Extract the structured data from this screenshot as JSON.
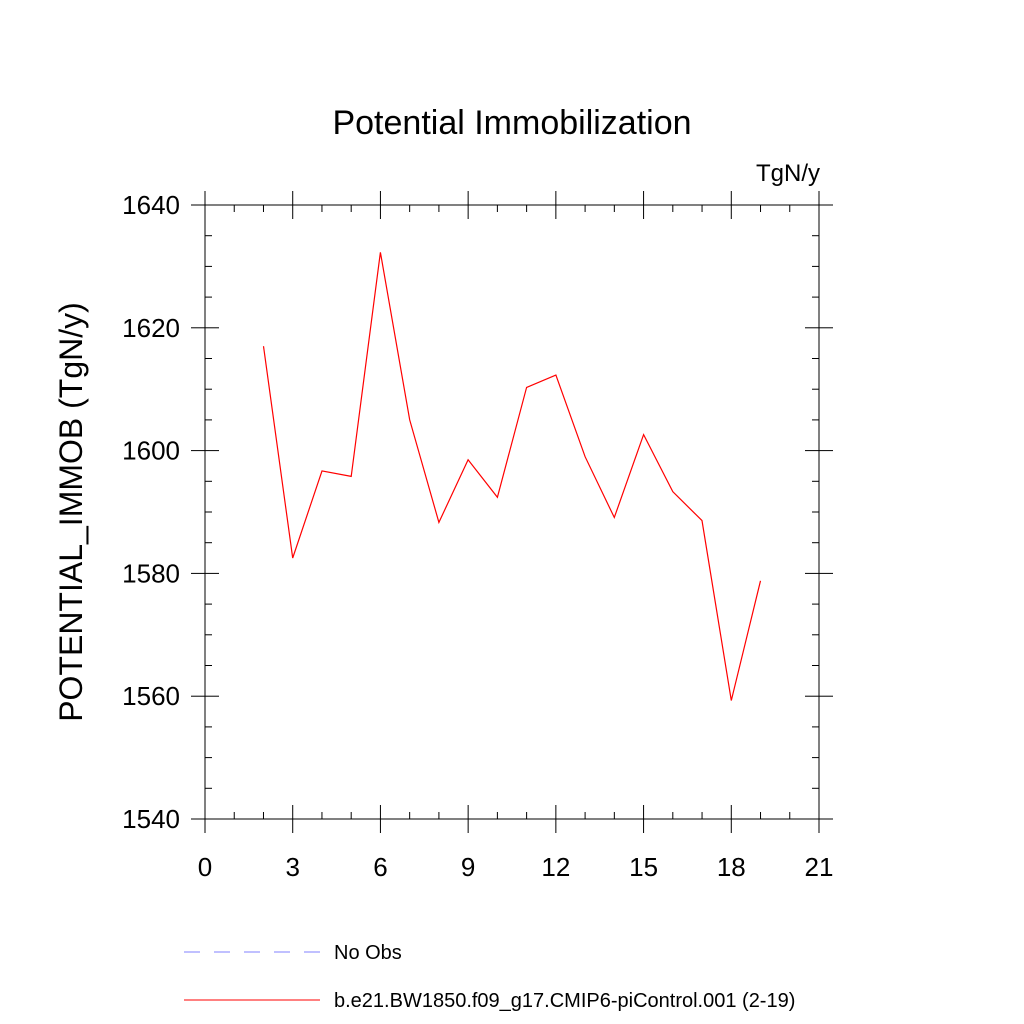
{
  "chart_data": {
    "type": "line",
    "title": "Potential Immobilization",
    "units_label": "TgN/y",
    "xlabel": "",
    "ylabel": "POTENTIAL_IMMOB  (TgN/y)",
    "xlim": [
      0,
      21
    ],
    "ylim": [
      1540,
      1640
    ],
    "xticks": [
      0,
      3,
      6,
      9,
      12,
      15,
      18,
      21
    ],
    "yticks": [
      1540,
      1560,
      1580,
      1600,
      1620,
      1640
    ],
    "grid": false,
    "series": [
      {
        "name": "b.e21.BW1850.f09_g17.CMIP6-piControl.001 (2-19)",
        "color": "#ff0000",
        "style": "solid",
        "x": [
          2,
          3,
          4,
          5,
          6,
          7,
          8,
          9,
          10,
          11,
          12,
          13,
          14,
          15,
          16,
          17,
          18,
          19
        ],
        "values": [
          1617,
          1582.5,
          1596.7,
          1595.8,
          1632.3,
          1605,
          1588.3,
          1598.5,
          1592.4,
          1610.3,
          1612.3,
          1599,
          1589.1,
          1602.6,
          1593.3,
          1588.6,
          1559.3,
          1578.8
        ]
      }
    ],
    "legend": {
      "placement": "bottom",
      "entries": [
        {
          "label": "No Obs",
          "color": "#8080ff",
          "style": "dashed"
        },
        {
          "label": "b.e21.BW1850.f09_g17.CMIP6-piControl.001 (2-19)",
          "color": "#ff0000",
          "style": "solid"
        }
      ]
    }
  }
}
